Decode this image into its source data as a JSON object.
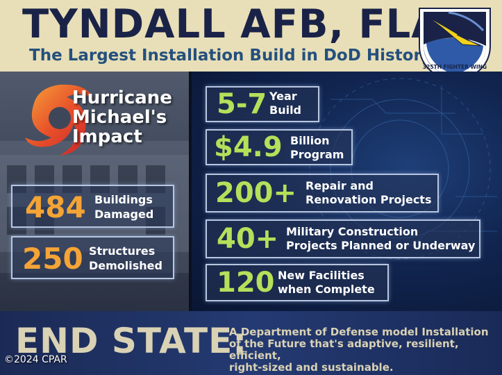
{
  "header": {
    "title": "TYNDALL AFB, FLA.",
    "subtitle": "The Largest Installation Build in DoD History",
    "emblem_text": "325TH FIGHTER WING"
  },
  "impact": {
    "title_line1": "Hurricane",
    "title_line2": "Michael's",
    "title_line3": "Impact",
    "stats": [
      {
        "value": "484",
        "label_line1": "Buildings",
        "label_line2": "Damaged"
      },
      {
        "value": "250",
        "label_line1": "Structures",
        "label_line2": "Demolished"
      }
    ]
  },
  "build": {
    "stats": [
      {
        "value": "5-7",
        "label_line1": "Year",
        "label_line2": "Build"
      },
      {
        "value": "$4.9",
        "label_line1": "Billion",
        "label_line2": "Program"
      },
      {
        "value": "200+",
        "label_line1": "Repair and",
        "label_line2": "Renovation Projects"
      },
      {
        "value": "40+",
        "label_line1": "Military Construction",
        "label_line2": "Projects Planned or Underway"
      },
      {
        "value": "120",
        "label_line1": "New Facilities",
        "label_line2": "when Complete"
      }
    ]
  },
  "footer": {
    "heading": "END STATE:",
    "desc_line1": "A Department of Defense model Installation",
    "desc_line2": "of the Future that's adaptive, resilient, efficient,",
    "desc_line3": "right-sized and sustainable.",
    "copyright": "©2024 CPAR"
  },
  "colors": {
    "title_navy": "#1a2347",
    "subtitle_blue": "#24507d",
    "header_bg": "#e8dfb8",
    "impact_orange": "#f4a436",
    "build_green": "#b4e05a",
    "footer_text": "#d9d2b4"
  }
}
